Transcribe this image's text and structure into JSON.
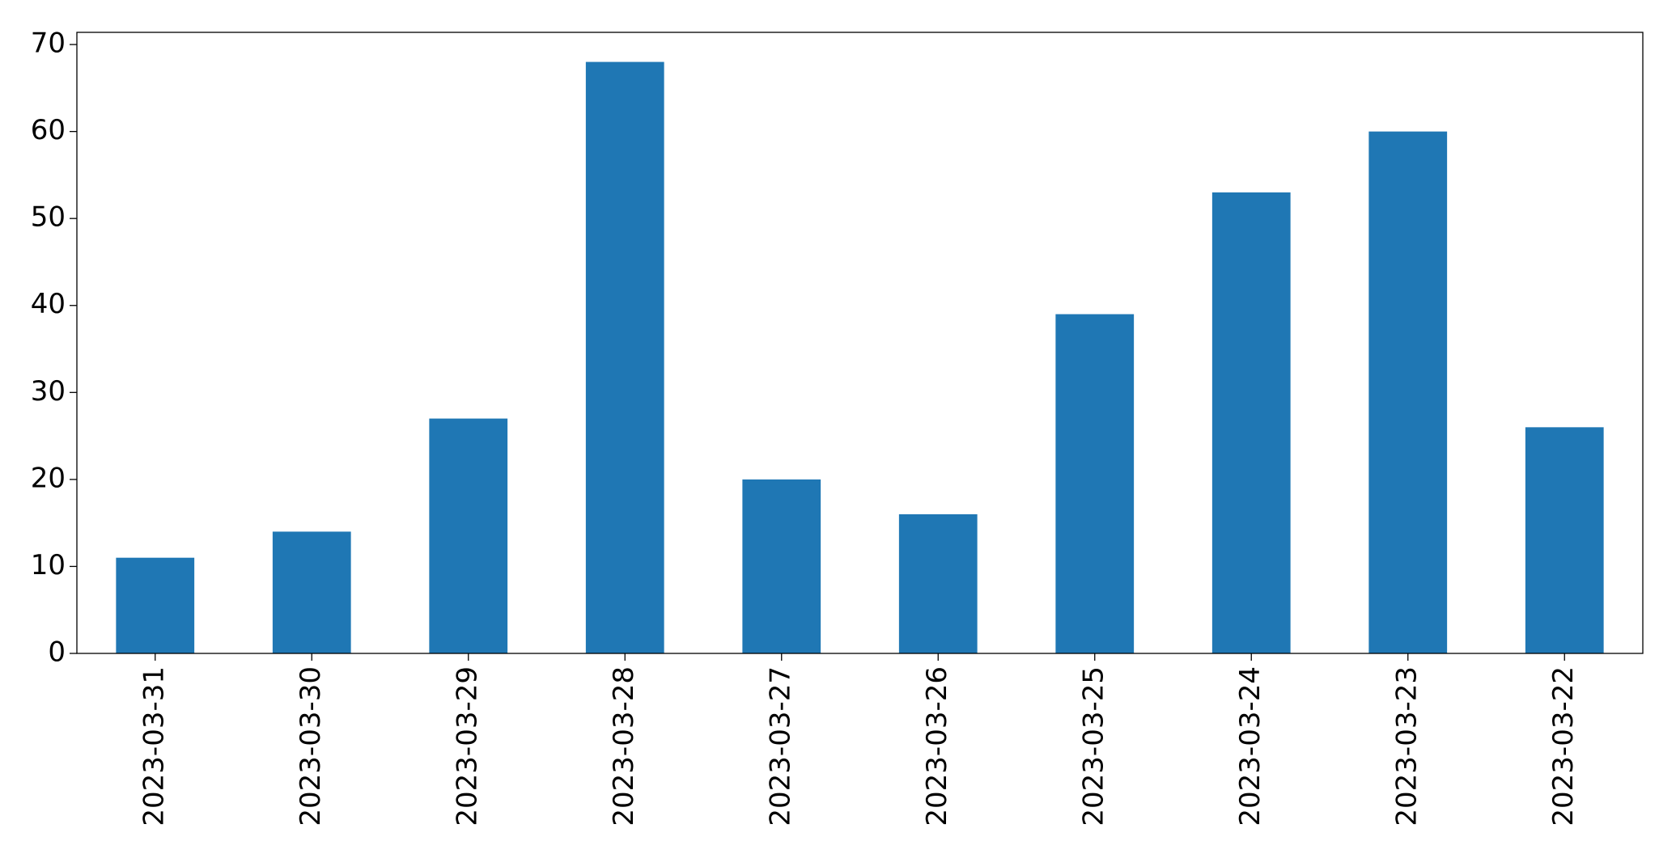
{
  "chart_data": {
    "type": "bar",
    "categories": [
      "2023-03-31",
      "2023-03-30",
      "2023-03-29",
      "2023-03-28",
      "2023-03-27",
      "2023-03-26",
      "2023-03-25",
      "2023-03-24",
      "2023-03-23",
      "2023-03-22"
    ],
    "values": [
      11,
      14,
      27,
      68,
      20,
      16,
      39,
      53,
      60,
      26
    ],
    "color": "#1f77b4",
    "ylim": [
      0,
      71.4
    ],
    "yticks": [
      0,
      10,
      20,
      30,
      40,
      50,
      60,
      70
    ],
    "grid": false
  }
}
